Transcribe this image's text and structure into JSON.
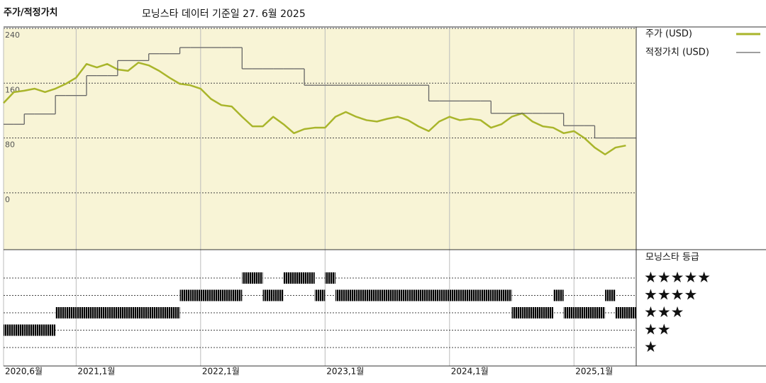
{
  "chart_data": {
    "type": "line",
    "title": "주가/적정가치",
    "subtitle": "모닝스타 데이터 기준일 27. 6월 2025",
    "x": [
      "2020-06",
      "2020-07",
      "2020-08",
      "2020-09",
      "2020-10",
      "2020-11",
      "2020-12",
      "2021-01",
      "2021-02",
      "2021-03",
      "2021-04",
      "2021-05",
      "2021-06",
      "2021-07",
      "2021-08",
      "2021-09",
      "2021-10",
      "2021-11",
      "2021-12",
      "2022-01",
      "2022-02",
      "2022-03",
      "2022-04",
      "2022-05",
      "2022-06",
      "2022-07",
      "2022-08",
      "2022-09",
      "2022-10",
      "2022-11",
      "2022-12",
      "2023-01",
      "2023-02",
      "2023-03",
      "2023-04",
      "2023-05",
      "2023-06",
      "2023-07",
      "2023-08",
      "2023-09",
      "2023-10",
      "2023-11",
      "2023-12",
      "2024-01",
      "2024-02",
      "2024-03",
      "2024-04",
      "2024-05",
      "2024-06",
      "2024-07",
      "2024-08",
      "2024-09",
      "2024-10",
      "2024-11",
      "2024-12",
      "2025-01",
      "2025-02",
      "2025-03",
      "2025-04",
      "2025-05",
      "2025-06"
    ],
    "series": [
      {
        "name": "주가 (USD)",
        "color": "#a9b52b",
        "values": [
          131,
          147,
          149,
          152,
          147,
          152,
          159,
          168,
          188,
          183,
          188,
          180,
          178,
          190,
          186,
          178,
          168,
          159,
          157,
          152,
          137,
          128,
          126,
          111,
          97,
          97,
          111,
          100,
          87,
          93,
          95,
          95,
          111,
          118,
          111,
          106,
          104,
          108,
          111,
          106,
          97,
          90,
          104,
          111,
          106,
          108,
          106,
          95,
          100,
          111,
          116,
          104,
          97,
          95,
          87,
          90,
          80,
          66,
          56,
          66,
          69
        ]
      },
      {
        "name": "적정가치 (USD)",
        "color": "#666666",
        "step": true,
        "values": [
          100,
          100,
          115,
          115,
          115,
          142,
          142,
          142,
          171,
          171,
          171,
          193,
          193,
          193,
          203,
          203,
          203,
          212,
          212,
          212,
          212,
          212,
          212,
          181,
          181,
          181,
          181,
          181,
          181,
          157,
          157,
          157,
          157,
          157,
          157,
          157,
          157,
          157,
          157,
          157,
          157,
          134,
          134,
          134,
          134,
          134,
          134,
          116,
          116,
          116,
          116,
          116,
          116,
          116,
          98,
          98,
          98,
          80,
          80,
          80,
          80
        ]
      }
    ],
    "ylim": [
      -83,
      240
    ],
    "yticks": [
      0,
      80,
      160,
      240
    ],
    "xticks": [
      {
        "value": "2020-06",
        "label": "2020,6월"
      },
      {
        "value": "2021-01",
        "label": "2021,1월"
      },
      {
        "value": "2022-01",
        "label": "2022,1월"
      },
      {
        "value": "2023-01",
        "label": "2023,1월"
      },
      {
        "value": "2024-01",
        "label": "2024,1월"
      },
      {
        "value": "2025-01",
        "label": "2025,1월"
      }
    ],
    "grid": true,
    "background": "#f8f4d6",
    "rating": {
      "title": "모닝스타 등급",
      "levels": [
        {
          "value": 5,
          "label": "★★★★★"
        },
        {
          "value": 4,
          "label": "★★★★"
        },
        {
          "value": 3,
          "label": "★★★"
        },
        {
          "value": 2,
          "label": "★★"
        },
        {
          "value": 1,
          "label": "★"
        }
      ],
      "values": [
        2,
        2,
        2,
        2,
        2,
        3,
        3,
        3,
        3,
        3,
        3,
        3,
        3,
        3,
        3,
        3,
        3,
        4,
        4,
        4,
        4,
        4,
        4,
        5,
        5,
        4,
        4,
        5,
        5,
        5,
        4,
        5,
        4,
        4,
        4,
        4,
        4,
        4,
        4,
        4,
        4,
        4,
        4,
        4,
        4,
        4,
        4,
        4,
        4,
        3,
        3,
        3,
        3,
        4,
        3,
        3,
        3,
        3,
        4,
        3,
        3
      ],
      "top_color": "#3d8a6c",
      "color": "#333333"
    }
  }
}
